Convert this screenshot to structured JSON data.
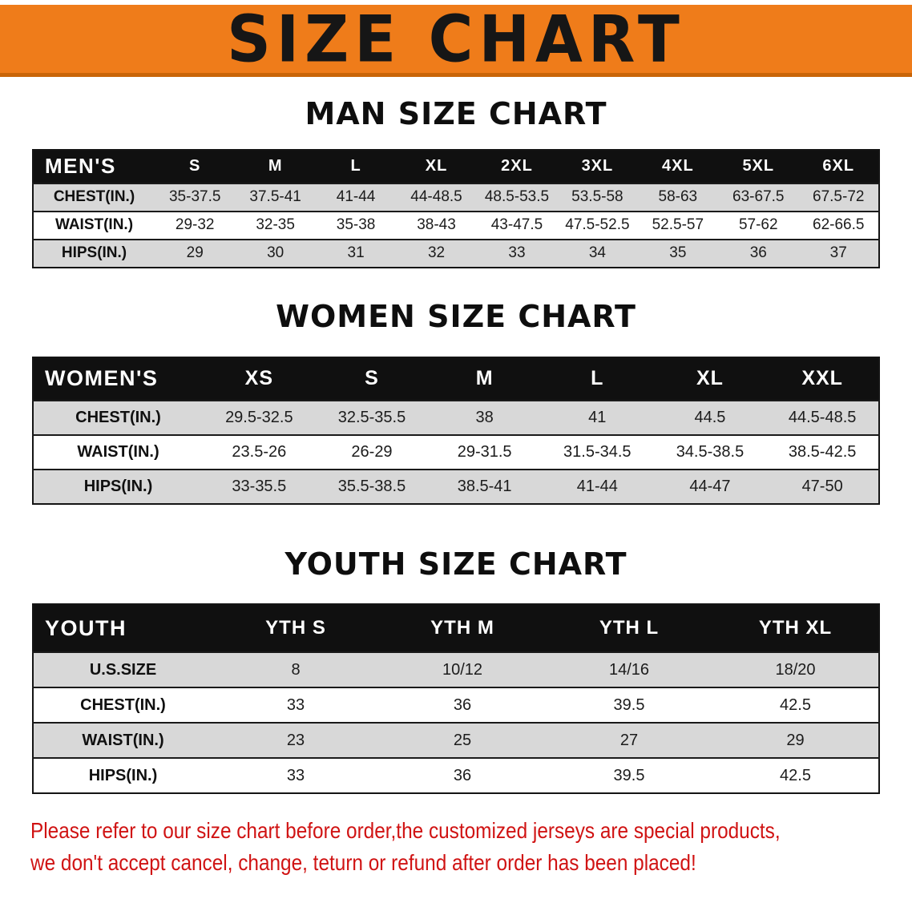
{
  "banner": {
    "title": "SIZE CHART"
  },
  "sections": {
    "men": {
      "title": "MAN SIZE CHART"
    },
    "women": {
      "title": "WOMEN SIZE CHART"
    },
    "youth": {
      "title": "YOUTH SIZE CHART"
    }
  },
  "tables": {
    "men": {
      "header": [
        "MEN'S",
        "S",
        "M",
        "L",
        "XL",
        "2XL",
        "3XL",
        "4XL",
        "5XL",
        "6XL"
      ],
      "rows": [
        {
          "label": "CHEST(IN.)",
          "values": [
            "35-37.5",
            "37.5-41",
            "41-44",
            "44-48.5",
            "48.5-53.5",
            "53.5-58",
            "58-63",
            "63-67.5",
            "67.5-72"
          ]
        },
        {
          "label": "WAIST(IN.)",
          "values": [
            "29-32",
            "32-35",
            "35-38",
            "38-43",
            "43-47.5",
            "47.5-52.5",
            "52.5-57",
            "57-62",
            "62-66.5"
          ]
        },
        {
          "label": "HIPS(IN.)",
          "values": [
            "29",
            "30",
            "31",
            "32",
            "33",
            "34",
            "35",
            "36",
            "37"
          ]
        }
      ]
    },
    "women": {
      "header": [
        "WOMEN'S",
        "XS",
        "S",
        "M",
        "L",
        "XL",
        "XXL"
      ],
      "rows": [
        {
          "label": "CHEST(IN.)",
          "values": [
            "29.5-32.5",
            "32.5-35.5",
            "38",
            "41",
            "44.5",
            "44.5-48.5"
          ]
        },
        {
          "label": "WAIST(IN.)",
          "values": [
            "23.5-26",
            "26-29",
            "29-31.5",
            "31.5-34.5",
            "34.5-38.5",
            "38.5-42.5"
          ]
        },
        {
          "label": "HIPS(IN.)",
          "values": [
            "33-35.5",
            "35.5-38.5",
            "38.5-41",
            "41-44",
            "44-47",
            "47-50"
          ]
        }
      ]
    },
    "youth": {
      "header": [
        "YOUTH",
        "YTH S",
        "YTH M",
        "YTH L",
        "YTH XL"
      ],
      "rows": [
        {
          "label": "U.S.SIZE",
          "values": [
            "8",
            "10/12",
            "14/16",
            "18/20"
          ]
        },
        {
          "label": "CHEST(IN.)",
          "values": [
            "33",
            "36",
            "39.5",
            "42.5"
          ]
        },
        {
          "label": "WAIST(IN.)",
          "values": [
            "23",
            "25",
            "27",
            "29"
          ]
        },
        {
          "label": "HIPS(IN.)",
          "values": [
            "33",
            "36",
            "39.5",
            "42.5"
          ]
        }
      ]
    }
  },
  "footer": {
    "line1": "Please refer to our size chart before order,the customized jerseys are special products,",
    "line2": "we don't accept cancel, change, teturn or refund after order has been placed!"
  },
  "colors": {
    "banner-orange": "#ef7c1a",
    "banner-orange-dark": "#c96508",
    "header-black": "#101010",
    "row-gray": "#d8d8d8",
    "disclaimer-red": "#d01313"
  }
}
